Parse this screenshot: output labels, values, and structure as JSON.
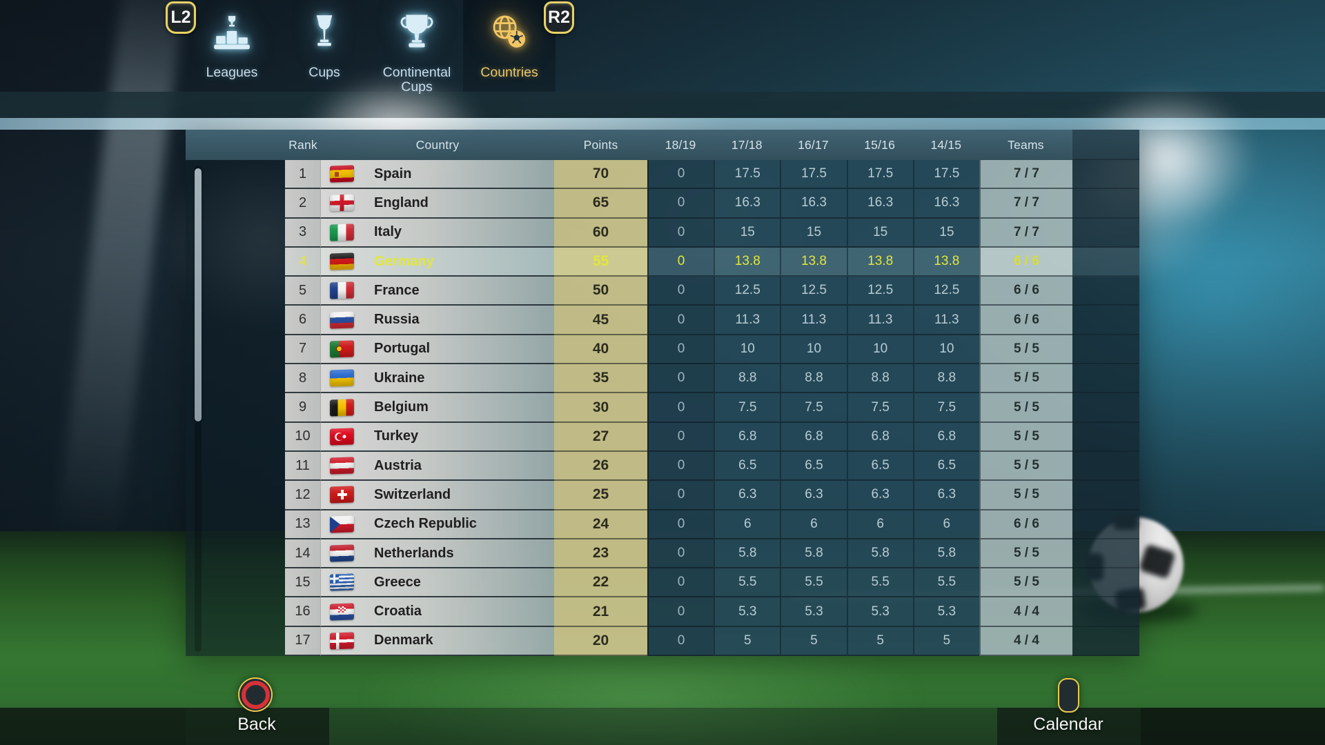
{
  "nav": {
    "shoulder_left": "L2",
    "shoulder_right": "R2",
    "tabs": [
      {
        "id": "leagues",
        "label": "Leagues",
        "icon": "podium-trophy-icon",
        "selected": false
      },
      {
        "id": "cups",
        "label": "Cups",
        "icon": "cup-trophy-icon",
        "selected": false
      },
      {
        "id": "continental-cups",
        "label": "Continental Cups",
        "icon": "continental-trophy-icon",
        "selected": false
      },
      {
        "id": "countries",
        "label": "Countries",
        "icon": "globe-football-icon",
        "selected": true
      }
    ]
  },
  "table": {
    "columns": [
      "Rank",
      "Country",
      "Points",
      "18/19",
      "17/18",
      "16/17",
      "15/16",
      "14/15",
      "Teams"
    ],
    "rows": [
      {
        "rank": 1,
        "flag": "spain",
        "country": "Spain",
        "points": 70,
        "seasons": [
          "0",
          "17.5",
          "17.5",
          "17.5",
          "17.5"
        ],
        "teams": "7 / 7",
        "highlighted": false
      },
      {
        "rank": 2,
        "flag": "england",
        "country": "England",
        "points": 65,
        "seasons": [
          "0",
          "16.3",
          "16.3",
          "16.3",
          "16.3"
        ],
        "teams": "7 / 7",
        "highlighted": false
      },
      {
        "rank": 3,
        "flag": "italy",
        "country": "Italy",
        "points": 60,
        "seasons": [
          "0",
          "15",
          "15",
          "15",
          "15"
        ],
        "teams": "7 / 7",
        "highlighted": false
      },
      {
        "rank": 4,
        "flag": "germany",
        "country": "Germany",
        "points": 55,
        "seasons": [
          "0",
          "13.8",
          "13.8",
          "13.8",
          "13.8"
        ],
        "teams": "6 / 6",
        "highlighted": true
      },
      {
        "rank": 5,
        "flag": "france",
        "country": "France",
        "points": 50,
        "seasons": [
          "0",
          "12.5",
          "12.5",
          "12.5",
          "12.5"
        ],
        "teams": "6 / 6",
        "highlighted": false
      },
      {
        "rank": 6,
        "flag": "russia",
        "country": "Russia",
        "points": 45,
        "seasons": [
          "0",
          "11.3",
          "11.3",
          "11.3",
          "11.3"
        ],
        "teams": "6 / 6",
        "highlighted": false
      },
      {
        "rank": 7,
        "flag": "portugal",
        "country": "Portugal",
        "points": 40,
        "seasons": [
          "0",
          "10",
          "10",
          "10",
          "10"
        ],
        "teams": "5 / 5",
        "highlighted": false
      },
      {
        "rank": 8,
        "flag": "ukraine",
        "country": "Ukraine",
        "points": 35,
        "seasons": [
          "0",
          "8.8",
          "8.8",
          "8.8",
          "8.8"
        ],
        "teams": "5 / 5",
        "highlighted": false
      },
      {
        "rank": 9,
        "flag": "belgium",
        "country": "Belgium",
        "points": 30,
        "seasons": [
          "0",
          "7.5",
          "7.5",
          "7.5",
          "7.5"
        ],
        "teams": "5 / 5",
        "highlighted": false
      },
      {
        "rank": 10,
        "flag": "turkey",
        "country": "Turkey",
        "points": 27,
        "seasons": [
          "0",
          "6.8",
          "6.8",
          "6.8",
          "6.8"
        ],
        "teams": "5 / 5",
        "highlighted": false
      },
      {
        "rank": 11,
        "flag": "austria",
        "country": "Austria",
        "points": 26,
        "seasons": [
          "0",
          "6.5",
          "6.5",
          "6.5",
          "6.5"
        ],
        "teams": "5 / 5",
        "highlighted": false
      },
      {
        "rank": 12,
        "flag": "switzerland",
        "country": "Switzerland",
        "points": 25,
        "seasons": [
          "0",
          "6.3",
          "6.3",
          "6.3",
          "6.3"
        ],
        "teams": "5 / 5",
        "highlighted": false
      },
      {
        "rank": 13,
        "flag": "czech-republic",
        "country": "Czech Republic",
        "points": 24,
        "seasons": [
          "0",
          "6",
          "6",
          "6",
          "6"
        ],
        "teams": "6 / 6",
        "highlighted": false
      },
      {
        "rank": 14,
        "flag": "netherlands",
        "country": "Netherlands",
        "points": 23,
        "seasons": [
          "0",
          "5.8",
          "5.8",
          "5.8",
          "5.8"
        ],
        "teams": "5 / 5",
        "highlighted": false
      },
      {
        "rank": 15,
        "flag": "greece",
        "country": "Greece",
        "points": 22,
        "seasons": [
          "0",
          "5.5",
          "5.5",
          "5.5",
          "5.5"
        ],
        "teams": "5 / 5",
        "highlighted": false
      },
      {
        "rank": 16,
        "flag": "croatia",
        "country": "Croatia",
        "points": 21,
        "seasons": [
          "0",
          "5.3",
          "5.3",
          "5.3",
          "5.3"
        ],
        "teams": "4 / 4",
        "highlighted": false
      },
      {
        "rank": 17,
        "flag": "denmark",
        "country": "Denmark",
        "points": 20,
        "seasons": [
          "0",
          "5",
          "5",
          "5",
          "5"
        ],
        "teams": "4 / 4",
        "highlighted": false
      }
    ]
  },
  "footer": {
    "back_label": "Back",
    "calendar_label": "Calendar"
  },
  "colors": {
    "accent_gold": "#e9c76a",
    "tab_glow_blue": "#cfe9f5",
    "highlight_text": "#e2e73a",
    "points_bg": "#cfc88e",
    "header_bg": "#3c5d6c",
    "back_button_red": "#d63238"
  }
}
